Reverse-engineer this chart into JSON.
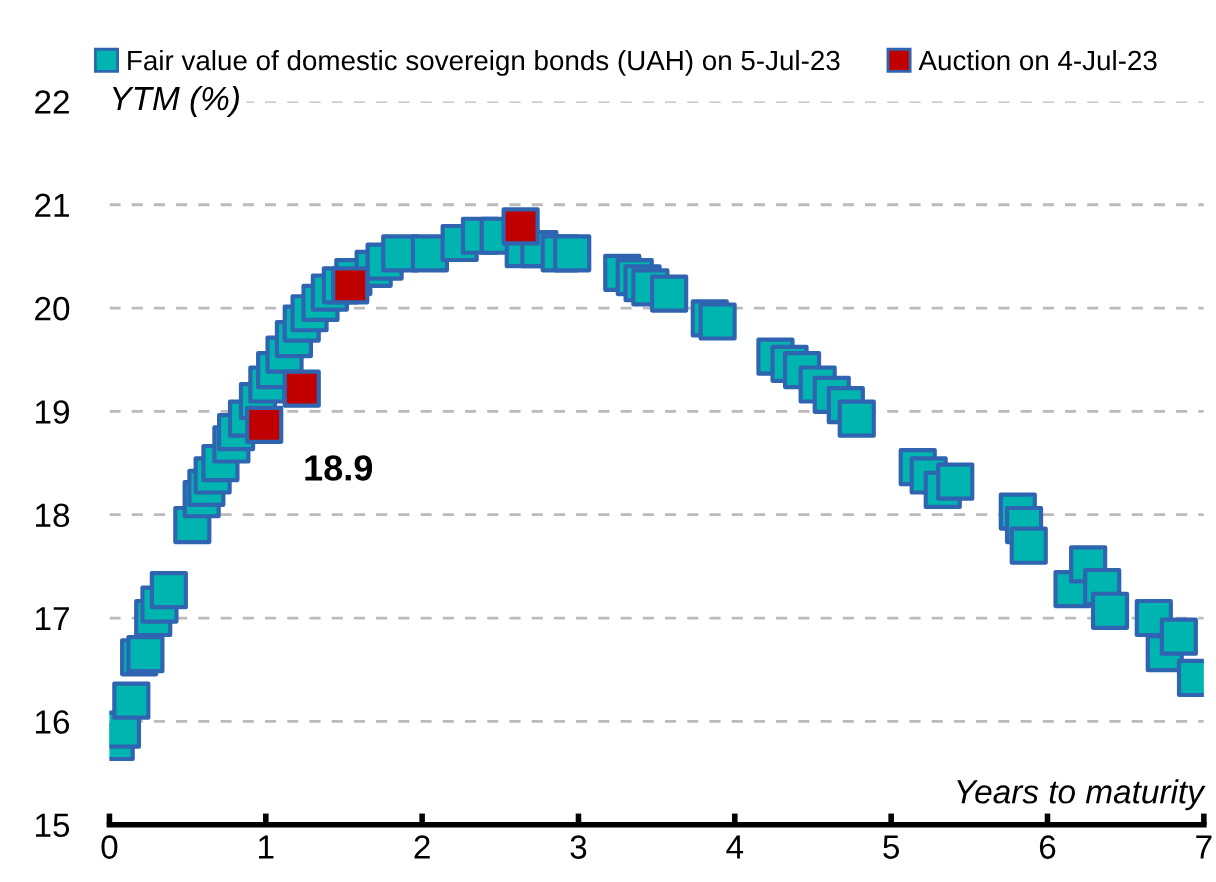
{
  "chart_data": {
    "type": "scatter",
    "xlabel": "Years to maturity",
    "ylabel": "YTM (%)",
    "marker": "square",
    "grid": "y",
    "legend": "top",
    "xlim": [
      0,
      7
    ],
    "xticks": [
      0,
      1,
      2,
      3,
      4,
      5,
      6,
      7
    ],
    "ylim": [
      15,
      22
    ],
    "yticks": [
      15,
      16,
      17,
      18,
      19,
      20,
      21,
      22
    ],
    "annotations": [
      {
        "text": "18.9",
        "x": 0.99,
        "y": 18.87
      }
    ],
    "series": [
      {
        "name": "Fair value of domestic sovereign bonds (UAH) on 5-Jul-23",
        "color": "#00b5b0",
        "x": [
          0.04,
          0.08,
          0.14,
          0.19,
          0.23,
          0.28,
          0.32,
          0.38,
          0.53,
          0.59,
          0.62,
          0.66,
          0.71,
          0.78,
          0.81,
          0.88,
          0.95,
          1.01,
          1.06,
          1.12,
          1.18,
          1.23,
          1.28,
          1.35,
          1.41,
          1.48,
          1.56,
          1.69,
          1.76,
          1.86,
          2.05,
          2.24,
          2.37,
          2.49,
          2.65,
          2.75,
          2.88,
          2.96,
          3.28,
          3.36,
          3.41,
          3.46,
          3.58,
          3.84,
          3.89,
          4.26,
          4.35,
          4.43,
          4.53,
          4.62,
          4.71,
          4.78,
          5.17,
          5.24,
          5.33,
          5.41,
          5.81,
          5.85,
          5.88,
          6.16,
          6.26,
          6.35,
          6.4,
          6.68,
          6.75,
          6.84,
          6.95
        ],
        "values": [
          15.8,
          15.92,
          16.2,
          16.62,
          16.65,
          17.0,
          17.13,
          17.27,
          17.9,
          18.15,
          18.26,
          18.38,
          18.5,
          18.68,
          18.8,
          18.93,
          19.1,
          19.26,
          19.4,
          19.55,
          19.7,
          19.85,
          19.95,
          20.05,
          20.15,
          20.22,
          20.3,
          20.38,
          20.45,
          20.53,
          20.53,
          20.63,
          20.7,
          20.7,
          20.57,
          20.57,
          20.53,
          20.53,
          20.34,
          20.3,
          20.24,
          20.2,
          20.14,
          19.9,
          19.87,
          19.53,
          19.46,
          19.4,
          19.26,
          19.16,
          19.06,
          18.93,
          18.46,
          18.38,
          18.24,
          18.32,
          18.03,
          17.9,
          17.7,
          17.28,
          17.52,
          17.3,
          17.07,
          17.0,
          16.66,
          16.82,
          16.42
        ]
      },
      {
        "name": "Auction on 4-Jul-23",
        "color": "#c00000",
        "x": [
          0.99,
          1.23,
          1.54,
          2.63
        ],
        "values": [
          18.87,
          19.22,
          20.22,
          20.79
        ]
      }
    ]
  }
}
